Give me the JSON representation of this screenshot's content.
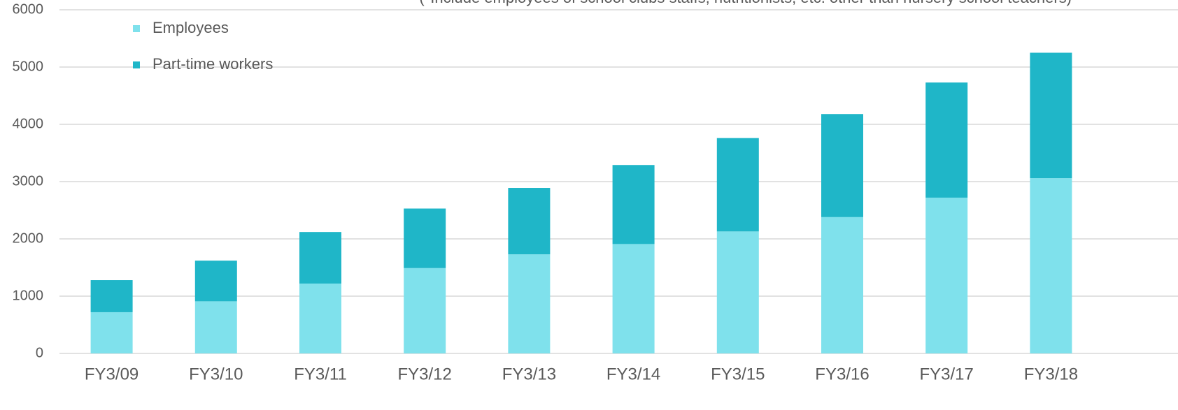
{
  "chart_data": {
    "type": "stacked_bar",
    "annotation": "(*Include employees of  school clubs staffs, nutritionists, etc. other than nursery school teachers)",
    "categories": [
      "FY3/09",
      "FY3/10",
      "FY3/11",
      "FY3/12",
      "FY3/13",
      "FY3/14",
      "FY3/15",
      "FY3/16",
      "FY3/17",
      "FY3/18"
    ],
    "series": [
      {
        "name": "Employees",
        "color": "#7fe1ec",
        "values": [
          720,
          910,
          1220,
          1490,
          1730,
          1910,
          2130,
          2380,
          2720,
          3060
        ]
      },
      {
        "name": "Part-time workers",
        "color": "#1fb6c8",
        "values": [
          560,
          710,
          900,
          1040,
          1160,
          1380,
          1630,
          1800,
          2010,
          2190
        ]
      }
    ],
    "ylim": [
      0,
      6000
    ],
    "yticks": [
      0,
      1000,
      2000,
      3000,
      4000,
      5000,
      6000
    ],
    "grid": true,
    "legend": "top-left"
  }
}
